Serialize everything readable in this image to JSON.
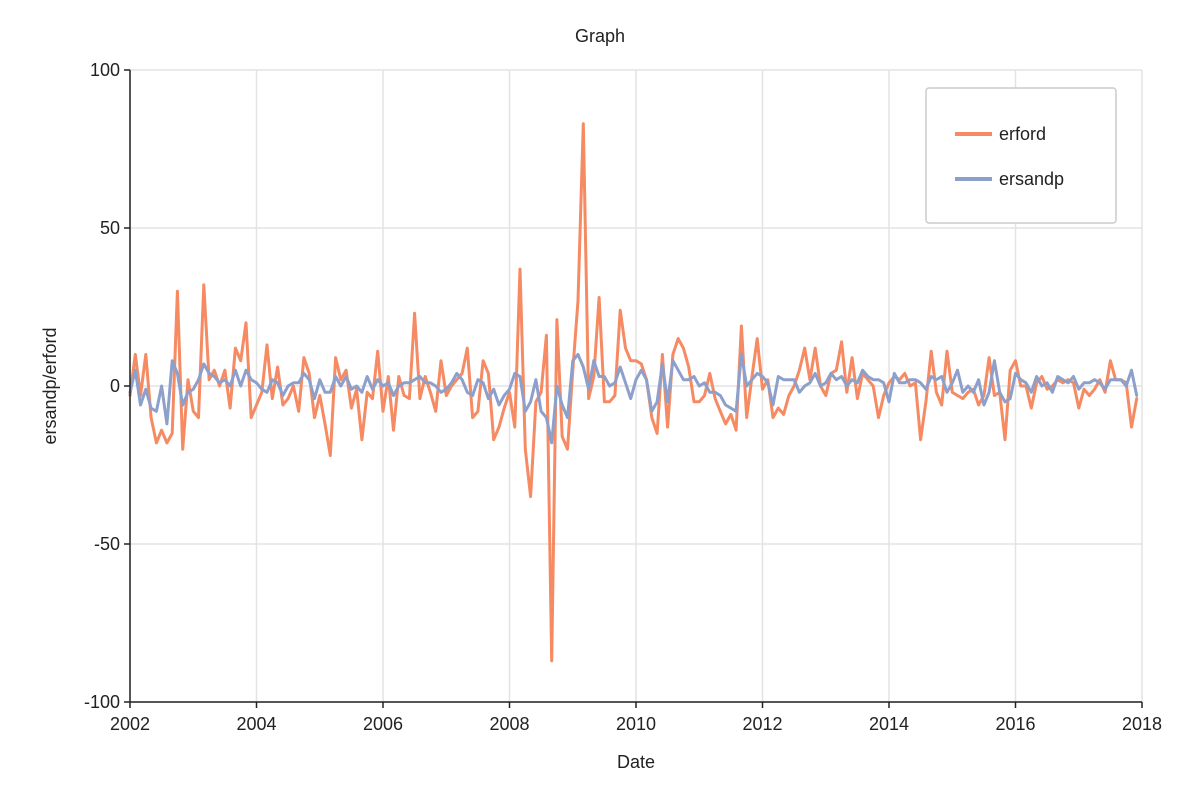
{
  "chart_data": {
    "type": "line",
    "title": "Graph",
    "xlabel": "Date",
    "ylabel": "ersandp/erford",
    "xlim": [
      "2002-01",
      "2018-01"
    ],
    "ylim": [
      -100,
      100
    ],
    "x_ticks": [
      "2002",
      "2004",
      "2006",
      "2008",
      "2010",
      "2012",
      "2014",
      "2016",
      "2018"
    ],
    "y_ticks": [
      "100",
      "50",
      "0",
      "-50",
      "-100"
    ],
    "grid": true,
    "legend_position": "top-right",
    "start": "2002-01",
    "frequency": "monthly",
    "series": [
      {
        "name": "erford",
        "color": "#f58a63",
        "values": [
          -3,
          10,
          -3,
          10,
          -10,
          -18,
          -14,
          -18,
          -15,
          30,
          -20,
          2,
          -8,
          -10,
          32,
          2,
          5,
          0,
          5,
          -7,
          12,
          8,
          20,
          -10,
          -6,
          -2,
          13,
          -4,
          6,
          -6,
          -4,
          0,
          -8,
          9,
          4,
          -10,
          -3,
          -12,
          -22,
          9,
          2,
          5,
          -7,
          -1,
          -17,
          -2,
          -4,
          11,
          -8,
          3,
          -14,
          3,
          -3,
          -4,
          23,
          -4,
          3,
          -2,
          -8,
          8,
          -3,
          0,
          2,
          4,
          12,
          -10,
          -8,
          8,
          4,
          -17,
          -13,
          -7,
          -2,
          -13,
          37,
          -20,
          -35,
          -5,
          -2,
          16,
          -87,
          21,
          -16,
          -20,
          5,
          27,
          83,
          -4,
          3,
          28,
          -5,
          -5,
          -3,
          24,
          12,
          8,
          8,
          7,
          2,
          -10,
          -15,
          10,
          -13,
          10,
          15,
          12,
          6,
          -5,
          -5,
          -3,
          4,
          -4,
          -8,
          -12,
          -9,
          -14,
          19,
          -10,
          3,
          15,
          -1,
          2,
          -10,
          -7,
          -9,
          -3,
          0,
          5,
          12,
          2,
          12,
          0,
          -3,
          4,
          5,
          14,
          -2,
          9,
          -4,
          4,
          2,
          0,
          -10,
          -3,
          1,
          3,
          2,
          4,
          0,
          1,
          -17,
          -5,
          11,
          -2,
          -6,
          11,
          -2,
          -3,
          -4,
          -2,
          -1,
          -6,
          -3,
          9,
          -3,
          -2,
          -17,
          5,
          8,
          0,
          0,
          -7,
          1,
          3,
          -1,
          0,
          2,
          1,
          2,
          1,
          -7,
          -1,
          -3,
          -1,
          2,
          -2,
          8,
          2,
          2,
          1,
          -13,
          -4
        ]
      },
      {
        "name": "ersandp",
        "color": "#8da0cb",
        "values": [
          -2,
          5,
          -6,
          -1,
          -7,
          -8,
          0,
          -12,
          8,
          4,
          -6,
          -2,
          -1,
          2,
          7,
          4,
          3,
          1,
          2,
          0,
          5,
          0,
          5,
          2,
          1,
          -1,
          -2,
          2,
          1,
          -3,
          0,
          1,
          1,
          4,
          2,
          -4,
          2,
          -2,
          -2,
          3,
          0,
          3,
          -1,
          0,
          -2,
          3,
          -1,
          2,
          0,
          1,
          -3,
          0,
          1,
          1,
          2,
          3,
          1,
          1,
          0,
          -2,
          -1,
          1,
          4,
          2,
          -2,
          -3,
          2,
          1,
          -4,
          -1,
          -6,
          -3,
          -1,
          4,
          3,
          -8,
          -5,
          2,
          -8,
          -10,
          -18,
          0,
          -6,
          -10,
          8,
          10,
          6,
          -1,
          8,
          3,
          3,
          0,
          1,
          6,
          1,
          -4,
          2,
          5,
          2,
          -8,
          -5,
          7,
          -5,
          8,
          5,
          2,
          2,
          3,
          0,
          1,
          -2,
          -2,
          -3,
          -6,
          -7,
          -8,
          10,
          0,
          2,
          4,
          3,
          1,
          -6,
          3,
          2,
          2,
          2,
          -2,
          0,
          1,
          4,
          0,
          1,
          4,
          2,
          3,
          0,
          2,
          1,
          5,
          3,
          2,
          2,
          1,
          -5,
          4,
          1,
          1,
          2,
          2,
          1,
          -1,
          3,
          2,
          3,
          -2,
          1,
          5,
          -2,
          0,
          -2,
          2,
          -6,
          -2,
          8,
          -2,
          -5,
          -4,
          4,
          2,
          1,
          -2,
          3,
          0,
          1,
          -2,
          3,
          2,
          1,
          3,
          -1,
          1,
          1,
          2,
          1,
          -1,
          2,
          2,
          2,
          0,
          5,
          -3
        ]
      }
    ]
  }
}
